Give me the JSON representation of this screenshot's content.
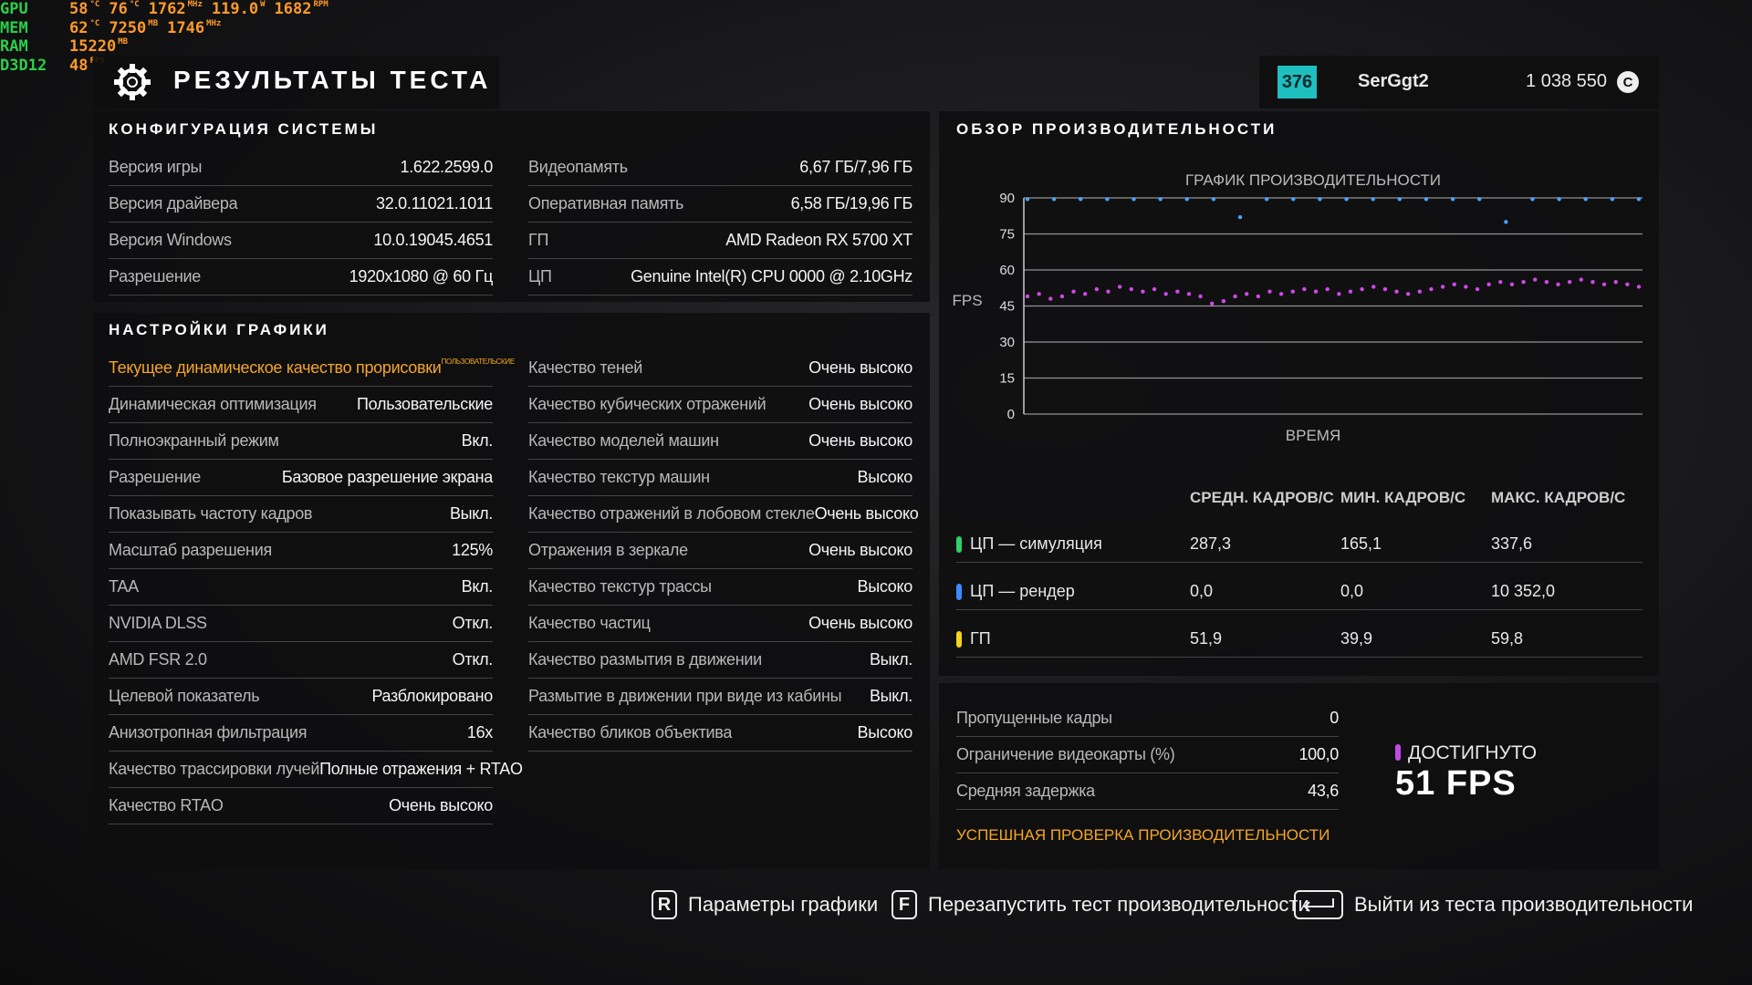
{
  "overlay": [
    {
      "label": "GPU",
      "items": [
        {
          "value": "58",
          "unit": "°C"
        },
        {
          "value": "76",
          "unit": "°C"
        },
        {
          "value": "1762",
          "unit": "MHz"
        },
        {
          "value": "119.0",
          "unit": "W"
        },
        {
          "value": "1682",
          "unit": "RPM"
        }
      ]
    },
    {
      "label": "MEM",
      "items": [
        {
          "value": "62",
          "unit": "°C"
        },
        {
          "value": "7250",
          "unit": "MB"
        },
        {
          "value": "1746",
          "unit": "MHz"
        }
      ]
    },
    {
      "label": "RAM",
      "items": [
        {
          "value": "15220",
          "unit": "MB"
        }
      ]
    },
    {
      "label": "D3D12",
      "items": [
        {
          "value": "48",
          "unit": "FPS"
        }
      ]
    }
  ],
  "header": {
    "title": "РЕЗУЛЬТАТЫ ТЕСТА",
    "level": "376",
    "user": "SerGgt2",
    "credits": "1 038 550",
    "credit_icon": "C"
  },
  "system": {
    "title": "КОНФИГУРАЦИЯ СИСТЕМЫ",
    "left": [
      [
        "Версия игры",
        "1.622.2599.0"
      ],
      [
        "Версия драйвера",
        "32.0.11021.1011"
      ],
      [
        "Версия Windows",
        "10.0.19045.4651"
      ],
      [
        "Разрешение",
        "1920x1080 @ 60 Гц"
      ]
    ],
    "right": [
      [
        "Видеопамять",
        "6,67 ГБ/7,96 ГБ"
      ],
      [
        "Оперативная память",
        "6,58 ГБ/19,96 ГБ"
      ],
      [
        "ГП",
        "AMD Radeon RX 5700 XT"
      ],
      [
        "ЦП",
        "Genuine Intel(R) CPU 0000 @ 2.10GHz"
      ]
    ]
  },
  "graphics": {
    "title": "НАСТРОЙКИ ГРАФИКИ",
    "highlight": {
      "label": "Текущее динамическое качество прорисовки",
      "note": "ПОЛЬЗОВАТЕЛЬСКИЕ"
    },
    "left": [
      [
        "Динамическая оптимизация",
        "Пользовательские"
      ],
      [
        "Полноэкранный режим",
        "Вкл."
      ],
      [
        "Разрешение",
        "Базовое разрешение экрана"
      ],
      [
        "Показывать частоту кадров",
        "Выкл."
      ],
      [
        "Масштаб разрешения",
        "125%"
      ],
      [
        "TAA",
        "Вкл."
      ],
      [
        "NVIDIA DLSS",
        "Откл."
      ],
      [
        "AMD FSR 2.0",
        "Откл."
      ],
      [
        "Целевой показатель",
        "Разблокировано"
      ],
      [
        "Анизотропная фильтрация",
        "16x"
      ],
      [
        "Качество трассировки лучей",
        "Полные отражения + RTAO"
      ],
      [
        "Качество RTAO",
        "Очень высоко"
      ]
    ],
    "right": [
      [
        "Качество теней",
        "Очень высоко"
      ],
      [
        "Качество кубических отражений",
        "Очень высоко"
      ],
      [
        "Качество моделей машин",
        "Очень высоко"
      ],
      [
        "Качество текстур машин",
        "Высоко"
      ],
      [
        "Качество отражений в лобовом стекле",
        "Очень высоко"
      ],
      [
        "Отражения в зеркале",
        "Очень высоко"
      ],
      [
        "Качество текстур трассы",
        "Высоко"
      ],
      [
        "Качество частиц",
        "Очень высоко"
      ],
      [
        "Качество размытия в движении",
        "Выкл."
      ],
      [
        "Размытие в движении при виде из кабины",
        "Выкл."
      ],
      [
        "Качество бликов объектива",
        "Высоко"
      ]
    ]
  },
  "performance": {
    "title": "ОБЗОР ПРОИЗВОДИТЕЛЬНОСТИ",
    "graph": {
      "type": "scatter",
      "title": "ГРАФИК ПРОИЗВОДИТЕЛЬНОСТИ",
      "ylabel": "FPS",
      "xlabel": "ВРЕМЯ",
      "ylim": [
        0,
        90
      ],
      "yticks": [
        0,
        15,
        30,
        45,
        60,
        75,
        90
      ],
      "grid": true,
      "series": [
        {
          "color": "#4aa3ff",
          "values": [
            89.5,
            89.5,
            89.5,
            89.5,
            89.5,
            89.5,
            89.5,
            89.5,
            82,
            89.5,
            89.5,
            89.5,
            89.5,
            89.5,
            89.5,
            89.5,
            89.5,
            89.5,
            80,
            89.5,
            89.5,
            89.5,
            89.5,
            89.5
          ]
        },
        {
          "color": "#d048e8",
          "values": [
            49,
            50,
            48,
            49,
            51,
            50,
            52,
            51,
            53,
            52,
            51,
            52,
            50,
            51,
            50,
            49,
            46,
            47,
            49,
            50,
            49,
            51,
            50,
            51,
            52,
            51,
            52,
            50,
            51,
            52,
            53,
            52,
            51,
            50,
            51,
            52,
            53,
            54,
            53,
            52,
            54,
            55,
            54,
            55,
            56,
            55,
            54,
            55,
            56,
            55,
            54,
            55,
            54,
            53
          ]
        }
      ]
    },
    "stats": {
      "headers": [
        "СРЕДН. КАДРОВ/С",
        "МИН. КАДРОВ/С",
        "МАКС. КАДРОВ/С"
      ],
      "rows": [
        {
          "name": "ЦП — симуляция",
          "color": "#2fd06a",
          "values": [
            "287,3",
            "165,1",
            "337,6"
          ]
        },
        {
          "name": "ЦП — рендер",
          "color": "#3c8cff",
          "values": [
            "0,0",
            "0,0",
            "10 352,0"
          ]
        },
        {
          "name": "ГП",
          "color": "#f2d21b",
          "values": [
            "51,9",
            "39,9",
            "59,8"
          ]
        }
      ]
    }
  },
  "summary": {
    "rows": [
      [
        "Пропущенные кадры",
        "0"
      ],
      [
        "Ограничение видеокарты (%)",
        "100,0"
      ],
      [
        "Средняя задержка",
        "43,6"
      ]
    ],
    "status": "УСПЕШНАЯ ПРОВЕРКА ПРОИЗВОДИТЕЛЬНОСТИ",
    "achieved_label": "ДОСТИГНУТО",
    "achieved_value": "51 FPS"
  },
  "footer": [
    {
      "key": "R",
      "label": "Параметры графики"
    },
    {
      "key": "F",
      "label": "Перезапустить тест производительности"
    },
    {
      "label": "Выйти из теста производительности"
    }
  ]
}
